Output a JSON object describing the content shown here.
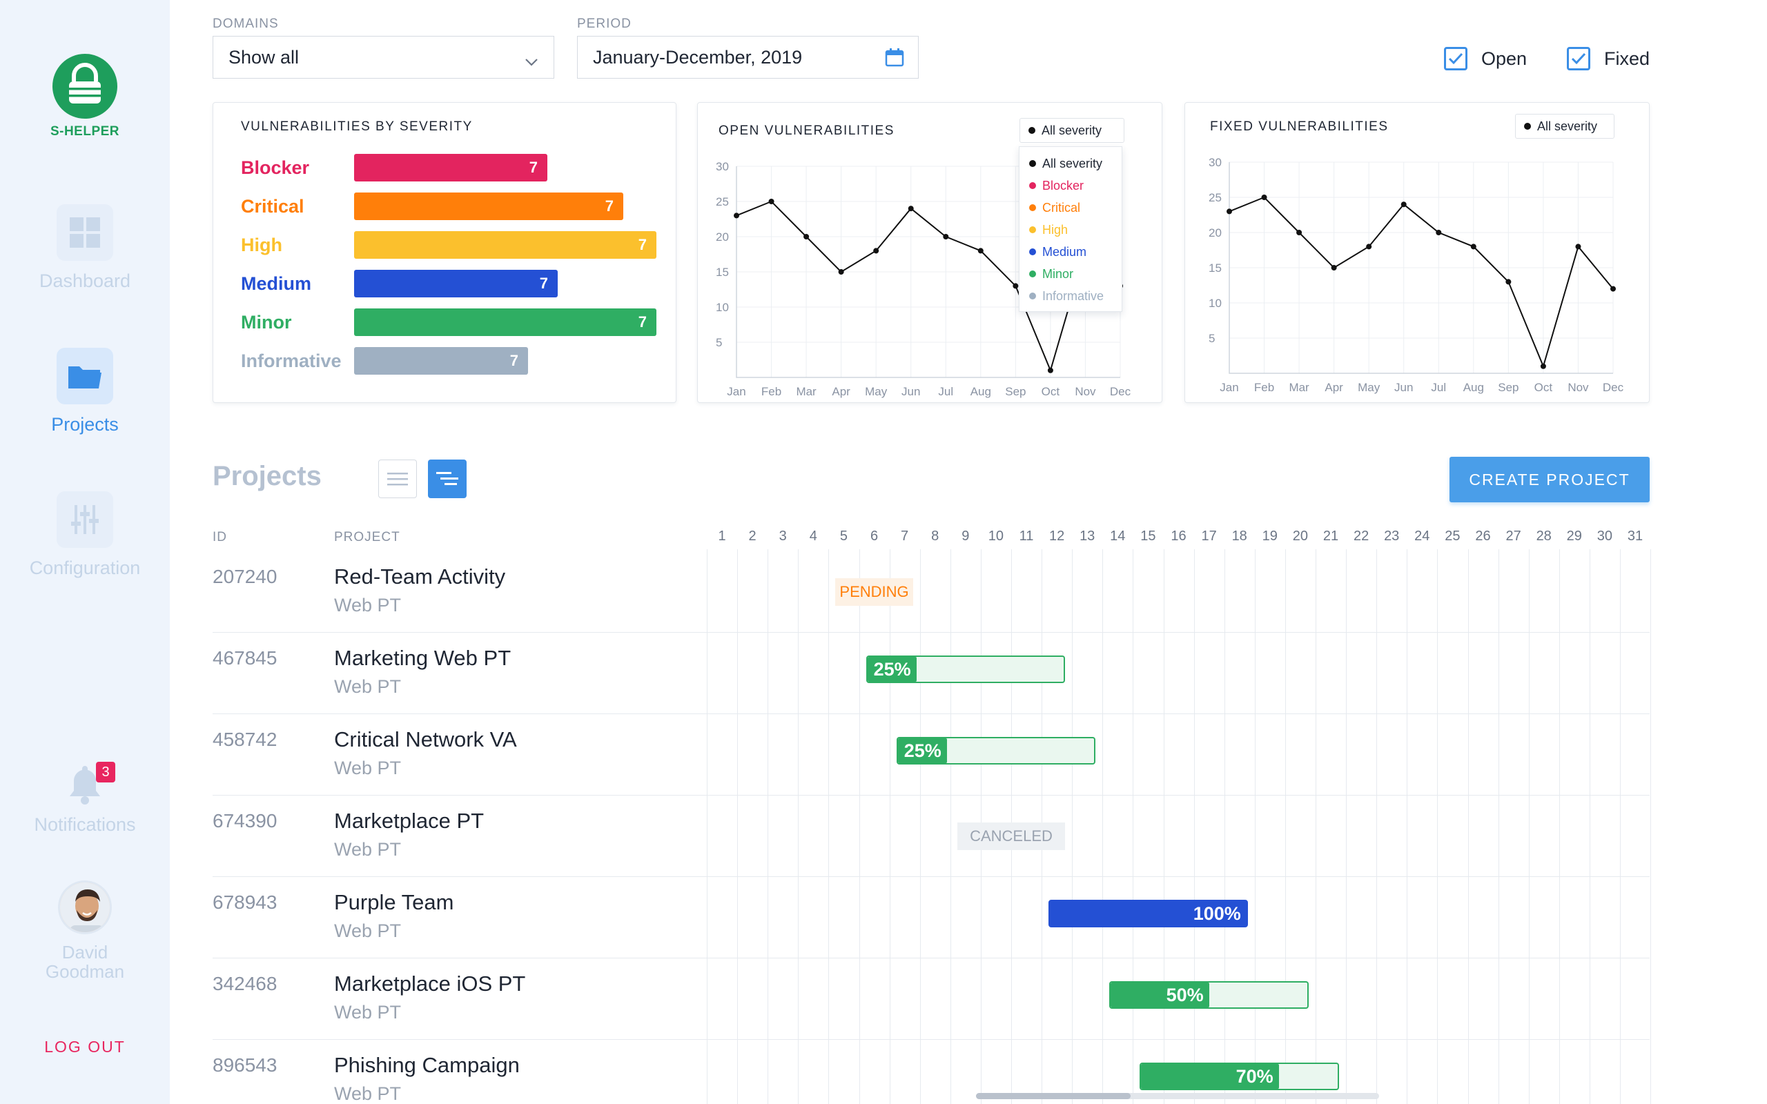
{
  "app": {
    "name": "S-HELPER"
  },
  "sidebar": {
    "items": [
      {
        "label": "Dashboard",
        "icon": "dashboard-icon",
        "active": false
      },
      {
        "label": "Projects",
        "icon": "folder-icon",
        "active": true
      },
      {
        "label": "Configuration",
        "icon": "sliders-icon",
        "active": false
      },
      {
        "label": "Notifications",
        "icon": "bell-icon",
        "active": false
      }
    ],
    "notifications_count": "3",
    "user": {
      "first": "David",
      "last": "Goodman"
    },
    "logout_label": "LOG OUT"
  },
  "filters": {
    "domains_label": "DOMAINS",
    "domains_value": "Show all",
    "period_label": "PERIOD",
    "period_value": "January-December, 2019",
    "open_label": "Open",
    "open_checked": true,
    "fixed_label": "Fixed",
    "fixed_checked": true
  },
  "colors": {
    "blocker": "#e3245f",
    "critical": "#ff7f0a",
    "high": "#fbc02d",
    "medium": "#2450d4",
    "minor": "#2fae63",
    "informative": "#9fb0c2",
    "accent": "#4a9ee9",
    "brand": "#1e9e5c"
  },
  "severity_card": {
    "title": "VULNERABILITIES BY SEVERITY",
    "rows": [
      {
        "label": "Blocker",
        "value": 7,
        "key": "blocker"
      },
      {
        "label": "Critical",
        "value": 7,
        "key": "critical"
      },
      {
        "label": "High",
        "value": 7,
        "key": "high"
      },
      {
        "label": "Medium",
        "value": 7,
        "key": "medium"
      },
      {
        "label": "Minor",
        "value": 7,
        "key": "minor"
      },
      {
        "label": "Informative",
        "value": 7,
        "key": "informative"
      }
    ]
  },
  "open_card": {
    "title": "OPEN VULNERABILITIES",
    "filter_value": "All severity",
    "dropdown_options": [
      "All severity",
      "Blocker",
      "Critical",
      "High",
      "Medium",
      "Minor",
      "Informative"
    ]
  },
  "fixed_card": {
    "title": "FIXED VULNERABILITIES",
    "filter_value": "All severity"
  },
  "chart_data": [
    {
      "type": "line",
      "title": "OPEN VULNERABILITIES",
      "categories": [
        "Jan",
        "Feb",
        "Mar",
        "Apr",
        "May",
        "Jun",
        "Jul",
        "Aug",
        "Sep",
        "Oct",
        "Nov",
        "Dec"
      ],
      "series": [
        {
          "values": [
            23,
            25,
            20,
            15,
            18,
            24,
            20,
            18,
            13,
            1,
            18,
            13
          ]
        }
      ],
      "yticks": [
        5,
        10,
        15,
        20,
        25,
        30
      ],
      "ylim": [
        0,
        30
      ],
      "grid": true
    },
    {
      "type": "line",
      "title": "FIXED VULNERABILITIES",
      "categories": [
        "Jan",
        "Feb",
        "Mar",
        "Apr",
        "May",
        "Jun",
        "Jul",
        "Aug",
        "Sep",
        "Oct",
        "Nov",
        "Dec"
      ],
      "series": [
        {
          "values": [
            23,
            25,
            20,
            15,
            18,
            24,
            20,
            18,
            13,
            1,
            18,
            12
          ]
        }
      ],
      "yticks": [
        5,
        10,
        15,
        20,
        25,
        30
      ],
      "ylim": [
        0,
        30
      ],
      "grid": true
    }
  ],
  "projects": {
    "heading": "Projects",
    "create_label": "CREATE PROJECT",
    "col_id": "ID",
    "col_project": "PROJECT",
    "days": [
      "1",
      "2",
      "3",
      "4",
      "5",
      "6",
      "7",
      "8",
      "9",
      "10",
      "11",
      "12",
      "13",
      "14",
      "15",
      "16",
      "17",
      "18",
      "19",
      "20",
      "21",
      "22",
      "23",
      "24",
      "25",
      "26",
      "27",
      "28",
      "29",
      "30",
      "31"
    ],
    "rows": [
      {
        "id": "207240",
        "title": "Red-Team Activity",
        "sub": "Web PT",
        "status": "PENDING",
        "progress": null,
        "start_day": 5,
        "end_day": 7
      },
      {
        "id": "467845",
        "title": "Marketing Web PT",
        "sub": "Web PT",
        "status": "",
        "progress_label": "25%",
        "progress": 0.25,
        "start_day": 6,
        "end_day": 12
      },
      {
        "id": "458742",
        "title": "Critical Network VA",
        "sub": "Web PT",
        "status": "",
        "progress_label": "25%",
        "progress": 0.25,
        "start_day": 7,
        "end_day": 13
      },
      {
        "id": "674390",
        "title": "Marketplace PT",
        "sub": "Web PT",
        "status": "CANCELED",
        "progress": null,
        "start_day": 9,
        "end_day": 12
      },
      {
        "id": "678943",
        "title": "Purple Team",
        "sub": "Web PT",
        "status": "",
        "progress_label": "100%",
        "progress": 1.0,
        "start_day": 12,
        "end_day": 18
      },
      {
        "id": "342468",
        "title": "Marketplace iOS PT",
        "sub": "Web PT",
        "status": "",
        "progress_label": "50%",
        "progress": 0.5,
        "start_day": 14,
        "end_day": 20
      },
      {
        "id": "896543",
        "title": "Phishing Campaign",
        "sub": "Web PT",
        "status": "",
        "progress_label": "70%",
        "progress": 0.7,
        "start_day": 15,
        "end_day": 21
      }
    ]
  }
}
